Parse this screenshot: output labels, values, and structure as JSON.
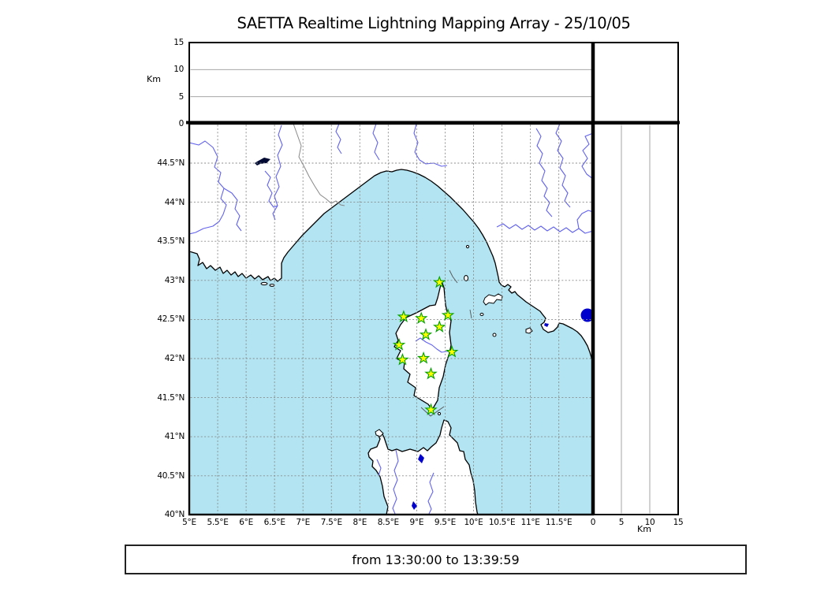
{
  "title": "SAETTA Realtime Lightning Mapping Array - 25/10/05",
  "time_bar": {
    "text": "from 13:30:00 to 13:39:59"
  },
  "top_panel": {
    "unit_label": "Km",
    "tick_labels": [
      "15",
      "10",
      "5",
      "0"
    ]
  },
  "right_panel": {
    "unit_label": "Km",
    "tick_labels": [
      "0",
      "5",
      "10",
      "15"
    ]
  },
  "map": {
    "lon_tick_labels": [
      "5°E",
      "5.5°E",
      "6°E",
      "6.5°E",
      "7°E",
      "7.5°E",
      "8°E",
      "8.5°E",
      "9°E",
      "9.5°E",
      "10°E",
      "10.5°E",
      "11°E",
      "11.5°E"
    ],
    "lat_tick_labels": [
      "44.5°N",
      "44°N",
      "43.5°N",
      "43°N",
      "42.5°N",
      "42°N",
      "41.5°N",
      "41°N",
      "40.5°N",
      "40°N"
    ],
    "altitude_range_km": [
      0,
      15
    ],
    "stations": [
      {
        "lon": 9.4,
        "lat": 42.97
      },
      {
        "lon": 8.77,
        "lat": 42.53
      },
      {
        "lon": 9.08,
        "lat": 42.51
      },
      {
        "lon": 9.55,
        "lat": 42.55
      },
      {
        "lon": 9.4,
        "lat": 42.4
      },
      {
        "lon": 9.16,
        "lat": 42.3
      },
      {
        "lon": 8.69,
        "lat": 42.17
      },
      {
        "lon": 9.62,
        "lat": 42.08
      },
      {
        "lon": 8.75,
        "lat": 41.98
      },
      {
        "lon": 9.12,
        "lat": 42.0
      },
      {
        "lon": 9.25,
        "lat": 41.8
      },
      {
        "lon": 9.25,
        "lat": 41.34
      }
    ]
  },
  "colors": {
    "sea": "#b2e4f2",
    "land": "#ffffff",
    "coastline": "#000000",
    "river": "#6262ee",
    "lake": "#0000cc",
    "grid": "#8a8a8a",
    "station_fill": "#ffff00",
    "station_stroke": "#00a000",
    "country_border": "#888888"
  }
}
